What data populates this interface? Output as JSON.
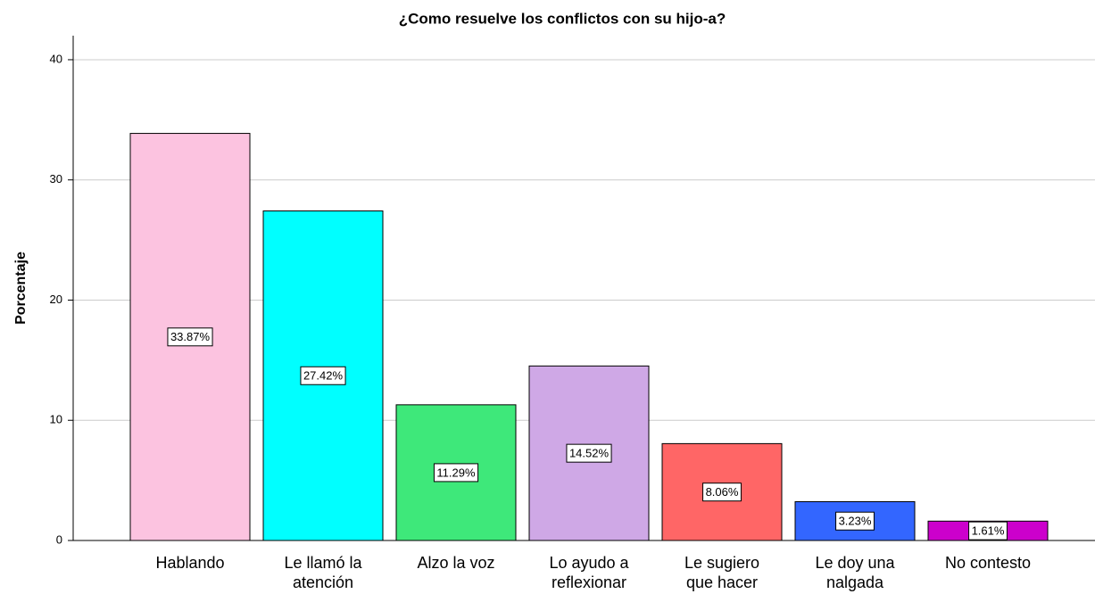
{
  "chart_data": {
    "type": "bar",
    "title": "¿Como resuelve los conflictos con su hijo-a?",
    "y_label": "Porcentaje",
    "categories": [
      "Hablando",
      "Le llamó la atención",
      "Alzo la voz",
      "Lo ayudo a reflexionar",
      "Le sugiero que hacer",
      "Le doy una nalgada",
      "No contesto"
    ],
    "values": [
      33.87,
      27.42,
      11.29,
      14.52,
      8.06,
      3.23,
      1.61
    ],
    "value_labels": [
      "33.87%",
      "27.42%",
      "11.29%",
      "14.52%",
      "8.06%",
      "3.23%",
      "1.61%"
    ],
    "colors": [
      "#fcc3e0",
      "#00ffff",
      "#3ee87a",
      "#cfa8e6",
      "#ff6666",
      "#3366ff",
      "#cc00cc"
    ],
    "ylim": [
      0,
      42
    ],
    "yticks": [
      0,
      10,
      20,
      30,
      40
    ],
    "grid": true
  }
}
